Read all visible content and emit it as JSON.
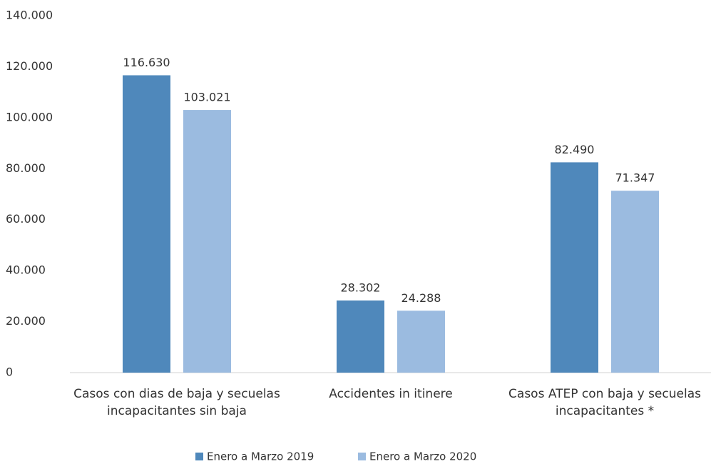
{
  "chart_data": {
    "type": "bar",
    "categories": [
      "Casos con dias de baja y secuelas incapacitantes sin baja",
      "Accidentes in itinere",
      "Casos ATEP con baja y secuelas incapacitantes *"
    ],
    "series": [
      {
        "name": "Enero a Marzo 2019",
        "color": "#4f88bb",
        "values": [
          116630,
          28302,
          82490
        ],
        "value_labels": [
          "116.630",
          "28.302",
          "82.490"
        ]
      },
      {
        "name": "Enero a Marzo 2020",
        "color": "#9bbbe0",
        "values": [
          103021,
          24288,
          71347
        ],
        "value_labels": [
          "103.021",
          "24.288",
          "71.347"
        ]
      }
    ],
    "ylim": [
      0,
      140000
    ],
    "yticks": [
      0,
      {
        "value": 20000,
        "label": "20.000"
      },
      {
        "value": 40000,
        "label": "40.000"
      },
      {
        "value": 60000,
        "label": "60.000"
      },
      {
        "value": 80000,
        "label": "80.000"
      },
      {
        "value": 100000,
        "label": "100.000"
      },
      {
        "value": 120000,
        "label": "120.000"
      },
      {
        "value": 140000,
        "label": "140.000"
      }
    ],
    "grid": false,
    "legend": "bottom"
  }
}
